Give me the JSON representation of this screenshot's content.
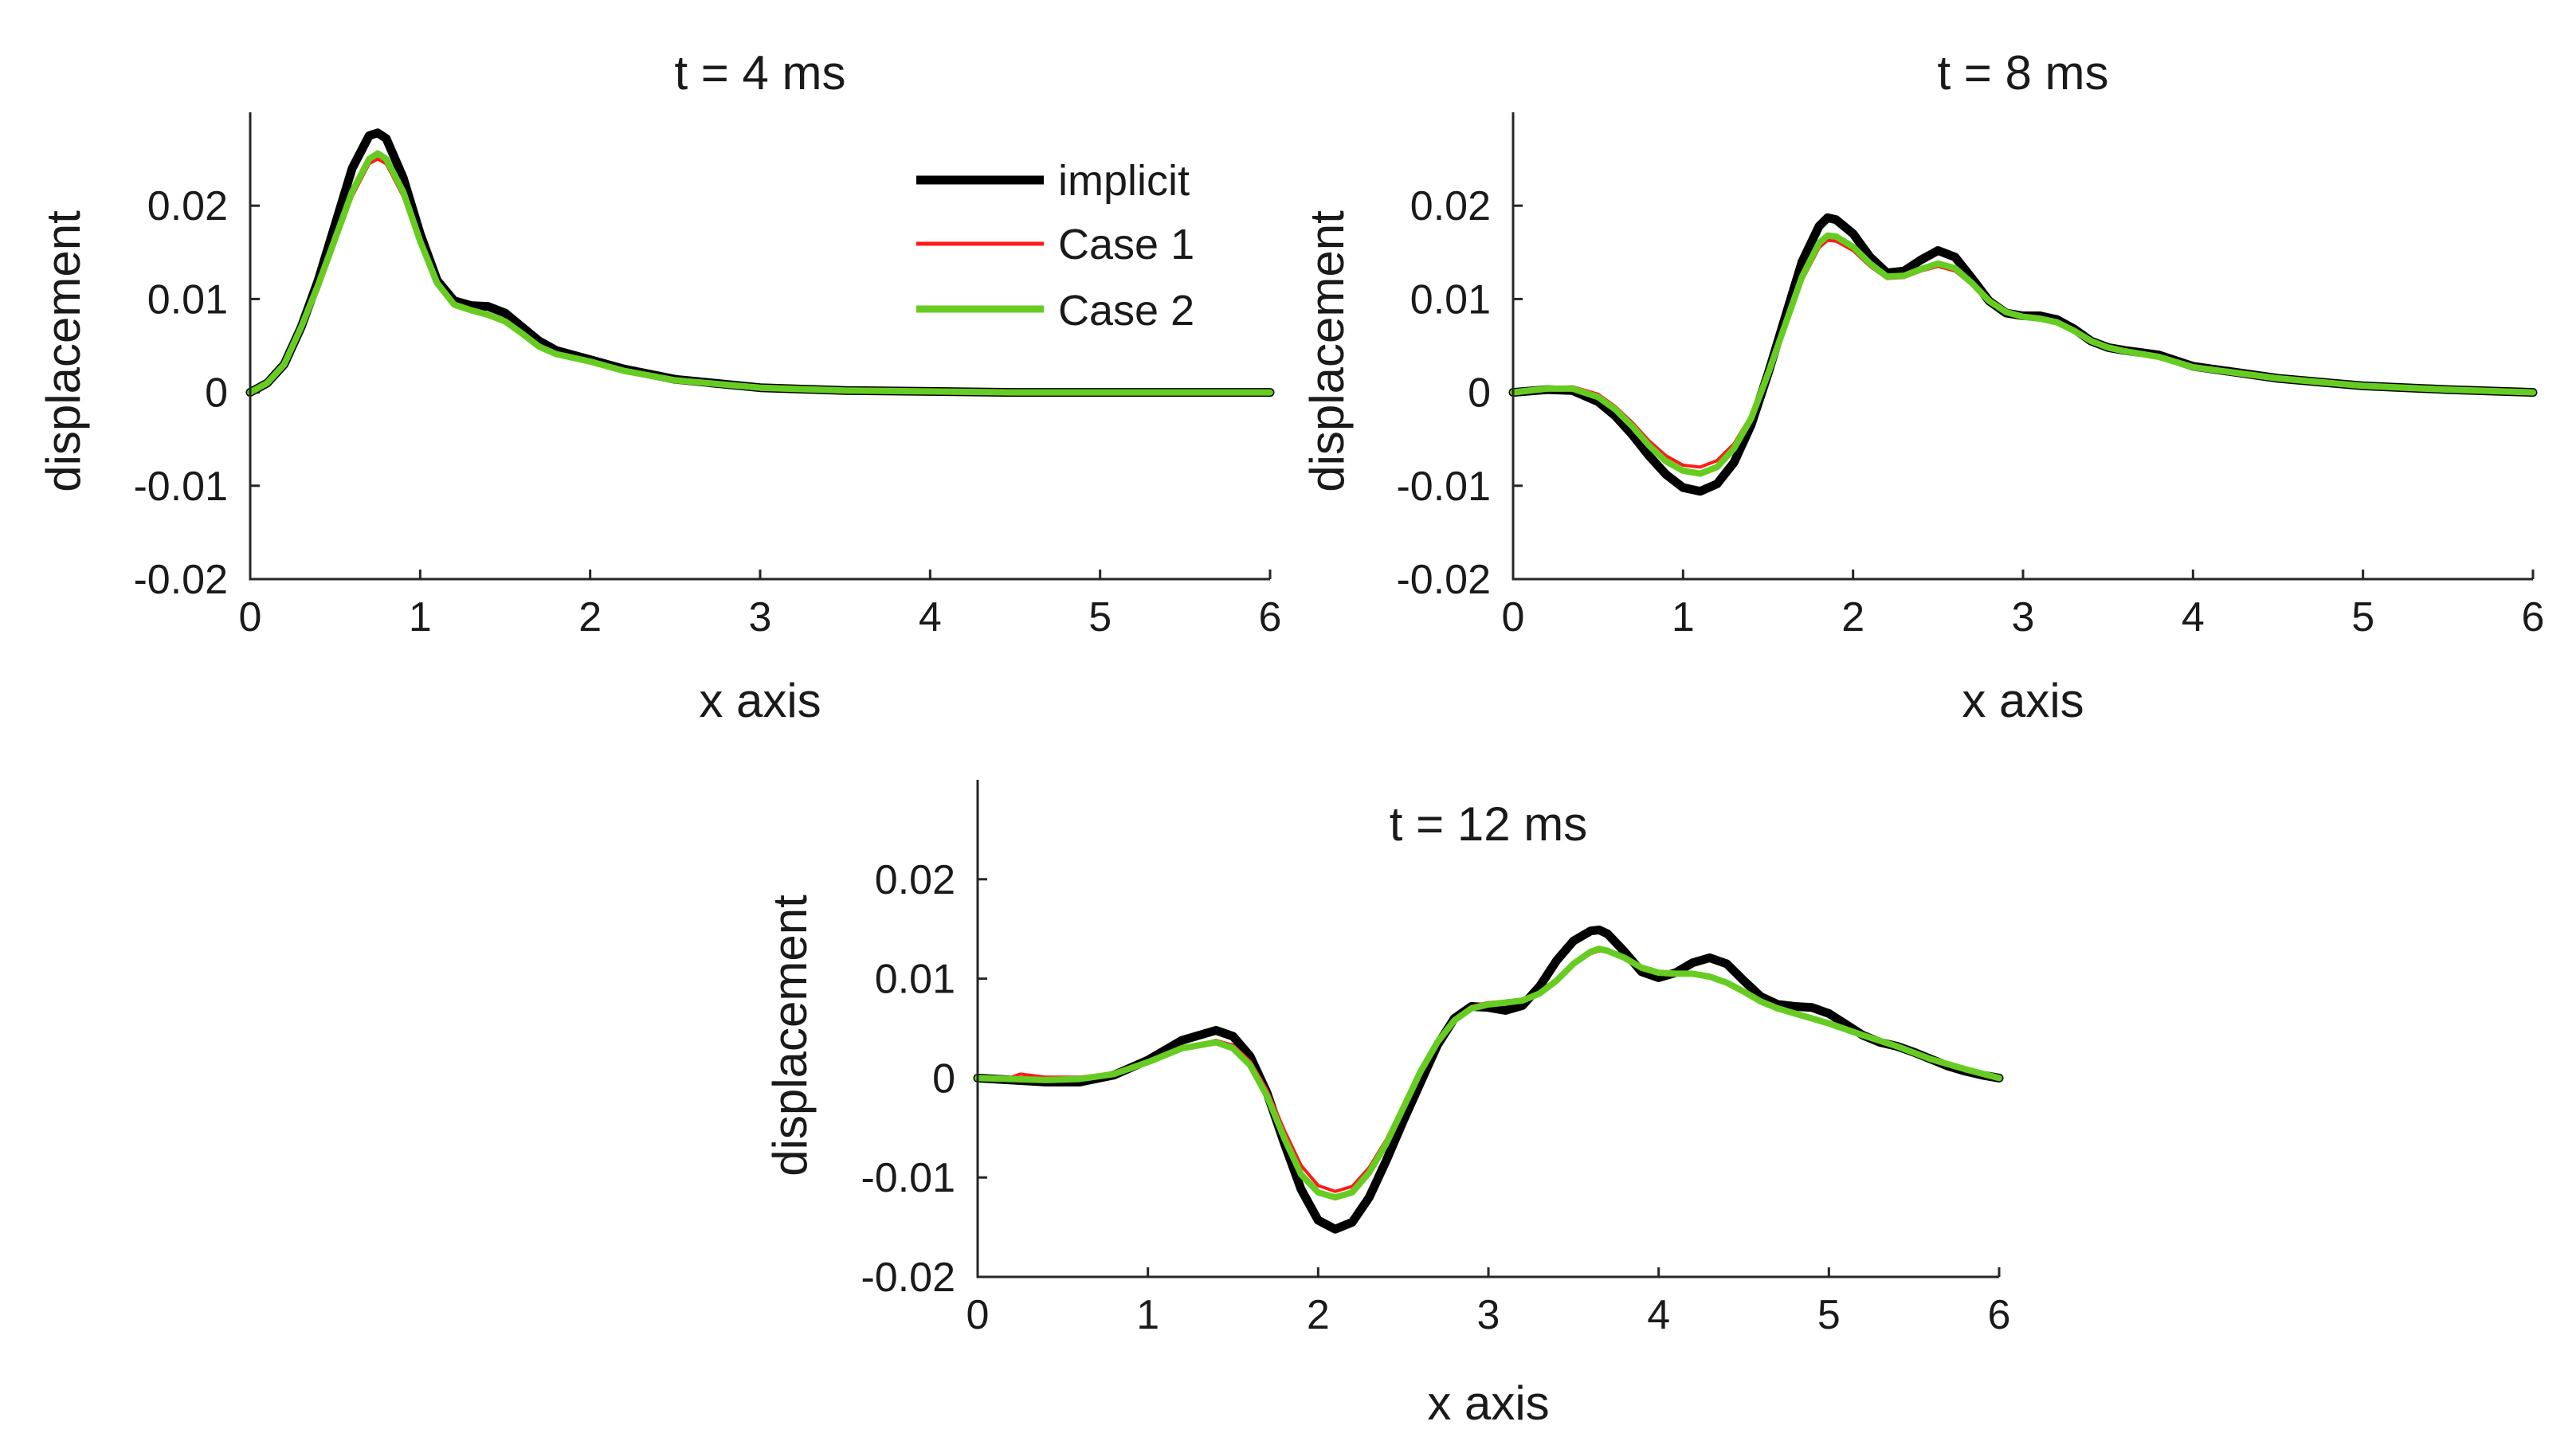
{
  "chart_data": [
    {
      "type": "line",
      "title": "t = 4 ms",
      "xlabel": "x axis",
      "ylabel": "displacement",
      "xlim": [
        0,
        6
      ],
      "ylim": [
        -0.02,
        0.03
      ],
      "xticks": [
        "0",
        "1",
        "2",
        "3",
        "4",
        "5",
        "6"
      ],
      "yticks": [
        "-0.02",
        "-0.01",
        "0",
        "0.01",
        "0.02"
      ],
      "legend": {
        "position": "top-right",
        "entries": [
          "implicit",
          "Case 1",
          "Case 2"
        ]
      },
      "series": [
        {
          "name": "implicit",
          "color": "#000000",
          "x": [
            0,
            0.1,
            0.2,
            0.3,
            0.4,
            0.5,
            0.6,
            0.7,
            0.75,
            0.8,
            0.9,
            1.0,
            1.1,
            1.2,
            1.3,
            1.4,
            1.5,
            1.6,
            1.7,
            1.8,
            2.0,
            2.2,
            2.5,
            3.0,
            3.5,
            4.0,
            4.5,
            5.0,
            6.0
          ],
          "y": [
            0,
            0.001,
            0.003,
            0.007,
            0.012,
            0.018,
            0.024,
            0.0275,
            0.0278,
            0.0272,
            0.023,
            0.017,
            0.012,
            0.0098,
            0.0093,
            0.0092,
            0.0085,
            0.007,
            0.0055,
            0.0045,
            0.0035,
            0.0025,
            0.0014,
            0.0005,
            0.0002,
            0.0001,
            0,
            0,
            0
          ]
        },
        {
          "name": "Case 1",
          "color": "#ff1a1a",
          "x": [
            0,
            0.1,
            0.2,
            0.3,
            0.4,
            0.5,
            0.6,
            0.7,
            0.75,
            0.8,
            0.9,
            1.0,
            1.1,
            1.2,
            1.3,
            1.4,
            1.5,
            1.6,
            1.7,
            1.8,
            2.0,
            2.2,
            2.5,
            3.0,
            3.5,
            4.0,
            4.5,
            5.0,
            6.0
          ],
          "y": [
            0,
            0.001,
            0.003,
            0.007,
            0.011,
            0.016,
            0.021,
            0.0245,
            0.025,
            0.0245,
            0.021,
            0.016,
            0.0115,
            0.0093,
            0.0087,
            0.0082,
            0.0075,
            0.0062,
            0.005,
            0.0042,
            0.0034,
            0.0024,
            0.0014,
            0.0006,
            0.0002,
            0.0001,
            0,
            0,
            0
          ]
        },
        {
          "name": "Case 2",
          "color": "#66cc22",
          "x": [
            0,
            0.1,
            0.2,
            0.3,
            0.4,
            0.5,
            0.6,
            0.7,
            0.75,
            0.8,
            0.9,
            1.0,
            1.1,
            1.2,
            1.3,
            1.4,
            1.5,
            1.6,
            1.7,
            1.8,
            2.0,
            2.2,
            2.5,
            3.0,
            3.5,
            4.0,
            4.5,
            5.0,
            6.0
          ],
          "y": [
            0,
            0.001,
            0.003,
            0.007,
            0.0115,
            0.0165,
            0.0215,
            0.025,
            0.0256,
            0.025,
            0.0215,
            0.0162,
            0.0117,
            0.0094,
            0.0088,
            0.0083,
            0.0076,
            0.0063,
            0.0049,
            0.0041,
            0.0033,
            0.0023,
            0.0013,
            0.0005,
            0.0002,
            0.0001,
            0,
            0,
            0
          ]
        }
      ]
    },
    {
      "type": "line",
      "title": "t = 8 ms",
      "xlabel": "x axis",
      "ylabel": "displacement",
      "xlim": [
        0,
        6
      ],
      "ylim": [
        -0.02,
        0.03
      ],
      "xticks": [
        "0",
        "1",
        "2",
        "3",
        "4",
        "5",
        "6"
      ],
      "yticks": [
        "-0.02",
        "-0.01",
        "0",
        "0.01",
        "0.02"
      ],
      "series": [
        {
          "name": "implicit",
          "color": "#000000",
          "x": [
            0,
            0.2,
            0.35,
            0.5,
            0.6,
            0.7,
            0.8,
            0.9,
            1.0,
            1.1,
            1.2,
            1.3,
            1.4,
            1.5,
            1.6,
            1.7,
            1.8,
            1.85,
            1.9,
            2.0,
            2.1,
            2.2,
            2.3,
            2.4,
            2.5,
            2.6,
            2.7,
            2.8,
            2.9,
            3.0,
            3.1,
            3.2,
            3.3,
            3.4,
            3.5,
            3.6,
            3.8,
            4.0,
            4.5,
            5.0,
            5.5,
            6.0
          ],
          "y": [
            0,
            0.0003,
            0.0002,
            -0.001,
            -0.0025,
            -0.0045,
            -0.0068,
            -0.0088,
            -0.0102,
            -0.0106,
            -0.0098,
            -0.0075,
            -0.0035,
            0.002,
            0.008,
            0.014,
            0.0178,
            0.0187,
            0.0185,
            0.017,
            0.0145,
            0.0128,
            0.013,
            0.0142,
            0.0152,
            0.0145,
            0.0122,
            0.0098,
            0.0085,
            0.0082,
            0.0082,
            0.0078,
            0.0068,
            0.0055,
            0.0048,
            0.0045,
            0.004,
            0.0028,
            0.0015,
            0.0007,
            0.0003,
            0
          ]
        },
        {
          "name": "Case 1",
          "color": "#ff1a1a",
          "x": [
            0,
            0.2,
            0.35,
            0.5,
            0.6,
            0.7,
            0.8,
            0.9,
            1.0,
            1.1,
            1.2,
            1.3,
            1.4,
            1.5,
            1.6,
            1.7,
            1.8,
            1.85,
            1.9,
            2.0,
            2.1,
            2.2,
            2.3,
            2.4,
            2.5,
            2.6,
            2.7,
            2.8,
            2.9,
            3.0,
            3.1,
            3.2,
            3.3,
            3.4,
            3.5,
            3.6,
            3.8,
            4.0,
            4.5,
            5.0,
            5.5,
            6.0
          ],
          "y": [
            0,
            0.0005,
            0.0006,
            -0.0002,
            -0.0015,
            -0.0032,
            -0.0052,
            -0.0068,
            -0.0078,
            -0.008,
            -0.0073,
            -0.0055,
            -0.0025,
            0.002,
            0.007,
            0.012,
            0.0155,
            0.0163,
            0.0162,
            0.0152,
            0.0135,
            0.0122,
            0.0123,
            0.013,
            0.0135,
            0.013,
            0.0115,
            0.0097,
            0.0086,
            0.0081,
            0.0078,
            0.0074,
            0.0066,
            0.0055,
            0.0048,
            0.0044,
            0.0038,
            0.0027,
            0.0015,
            0.0007,
            0.0003,
            0
          ]
        },
        {
          "name": "Case 2",
          "color": "#66cc22",
          "x": [
            0,
            0.2,
            0.35,
            0.5,
            0.6,
            0.7,
            0.8,
            0.9,
            1.0,
            1.1,
            1.2,
            1.3,
            1.4,
            1.5,
            1.6,
            1.7,
            1.8,
            1.85,
            1.9,
            2.0,
            2.1,
            2.2,
            2.3,
            2.4,
            2.5,
            2.6,
            2.7,
            2.8,
            2.9,
            3.0,
            3.1,
            3.2,
            3.3,
            3.4,
            3.5,
            3.6,
            3.8,
            4.0,
            4.5,
            5.0,
            5.5,
            6.0
          ],
          "y": [
            0,
            0.0004,
            0.0004,
            -0.0005,
            -0.0018,
            -0.0036,
            -0.0057,
            -0.0074,
            -0.0084,
            -0.0087,
            -0.008,
            -0.006,
            -0.0028,
            0.002,
            0.0072,
            0.0124,
            0.016,
            0.0168,
            0.0167,
            0.0156,
            0.0138,
            0.0124,
            0.0125,
            0.0132,
            0.0138,
            0.0133,
            0.0117,
            0.0098,
            0.0086,
            0.0081,
            0.0079,
            0.0075,
            0.0066,
            0.0055,
            0.0048,
            0.0044,
            0.0038,
            0.0027,
            0.0015,
            0.0007,
            0.0003,
            0
          ]
        }
      ]
    },
    {
      "type": "line",
      "title": "t = 12 ms",
      "xlabel": "x axis",
      "ylabel": "displacement",
      "xlim": [
        0,
        6
      ],
      "ylim": [
        -0.02,
        0.03
      ],
      "xticks": [
        "0",
        "1",
        "2",
        "3",
        "4",
        "5",
        "6"
      ],
      "yticks": [
        "-0.02",
        "-0.01",
        "0",
        "0.01",
        "0.02"
      ],
      "series": [
        {
          "name": "implicit",
          "color": "#000000",
          "x": [
            0,
            0.2,
            0.4,
            0.6,
            0.8,
            1.0,
            1.2,
            1.4,
            1.5,
            1.6,
            1.7,
            1.8,
            1.9,
            2.0,
            2.1,
            2.2,
            2.3,
            2.4,
            2.5,
            2.6,
            2.7,
            2.8,
            2.9,
            3.0,
            3.1,
            3.2,
            3.3,
            3.4,
            3.5,
            3.6,
            3.65,
            3.7,
            3.8,
            3.9,
            4.0,
            4.1,
            4.2,
            4.3,
            4.4,
            4.5,
            4.6,
            4.7,
            4.8,
            4.9,
            5.0,
            5.1,
            5.2,
            5.3,
            5.4,
            5.5,
            5.6,
            5.7,
            5.8,
            5.9,
            6.0
          ],
          "y": [
            0,
            -0.0002,
            -0.0004,
            -0.0004,
            0.0003,
            0.0018,
            0.0038,
            0.0048,
            0.0042,
            0.0022,
            -0.0015,
            -0.0065,
            -0.0112,
            -0.0143,
            -0.0152,
            -0.0145,
            -0.012,
            -0.0083,
            -0.0043,
            -0.0005,
            0.0033,
            0.006,
            0.0072,
            0.0071,
            0.0068,
            0.0073,
            0.0092,
            0.0118,
            0.0138,
            0.0148,
            0.0149,
            0.0145,
            0.0127,
            0.0107,
            0.0101,
            0.0106,
            0.0116,
            0.0121,
            0.0115,
            0.0098,
            0.0082,
            0.0074,
            0.0072,
            0.0071,
            0.0065,
            0.0054,
            0.0043,
            0.0036,
            0.0032,
            0.0026,
            0.0019,
            0.0012,
            0.0007,
            0.0003,
            0
          ]
        },
        {
          "name": "Case 1",
          "color": "#ff1a1a",
          "x": [
            0,
            0.2,
            0.25,
            0.4,
            0.6,
            0.8,
            1.0,
            1.2,
            1.4,
            1.5,
            1.6,
            1.7,
            1.8,
            1.9,
            2.0,
            2.1,
            2.2,
            2.3,
            2.4,
            2.5,
            2.6,
            2.7,
            2.8,
            2.9,
            3.0,
            3.1,
            3.2,
            3.3,
            3.4,
            3.5,
            3.6,
            3.65,
            3.7,
            3.8,
            3.9,
            4.0,
            4.1,
            4.2,
            4.3,
            4.4,
            4.5,
            4.6,
            4.7,
            4.8,
            4.9,
            5.0,
            5.2,
            5.4,
            5.6,
            5.8,
            6.0
          ],
          "y": [
            0,
            0.0001,
            0.0004,
            0.0001,
            0.0001,
            0.0005,
            0.0016,
            0.003,
            0.0038,
            0.0033,
            0.0017,
            -0.0012,
            -0.0052,
            -0.0088,
            -0.0108,
            -0.0114,
            -0.0109,
            -0.009,
            -0.0062,
            -0.0027,
            0.0008,
            0.0038,
            0.006,
            0.0072,
            0.0076,
            0.0077,
            0.0079,
            0.0085,
            0.0098,
            0.0115,
            0.0125,
            0.0128,
            0.0127,
            0.012,
            0.011,
            0.0105,
            0.0104,
            0.0104,
            0.0101,
            0.0095,
            0.0086,
            0.0076,
            0.0069,
            0.0064,
            0.006,
            0.0055,
            0.0043,
            0.0032,
            0.0019,
            0.0009,
            0
          ]
        },
        {
          "name": "Case 2",
          "color": "#66cc22",
          "x": [
            0,
            0.2,
            0.4,
            0.6,
            0.8,
            1.0,
            1.2,
            1.4,
            1.5,
            1.6,
            1.7,
            1.8,
            1.9,
            2.0,
            2.1,
            2.2,
            2.3,
            2.4,
            2.5,
            2.6,
            2.7,
            2.8,
            2.9,
            3.0,
            3.1,
            3.2,
            3.3,
            3.4,
            3.5,
            3.6,
            3.65,
            3.7,
            3.8,
            3.9,
            4.0,
            4.1,
            4.2,
            4.3,
            4.4,
            4.5,
            4.6,
            4.7,
            4.8,
            4.9,
            5.0,
            5.2,
            5.4,
            5.6,
            5.8,
            6.0
          ],
          "y": [
            0,
            -0.0001,
            -0.0002,
            -0.0001,
            0.0004,
            0.0016,
            0.003,
            0.0036,
            0.003,
            0.0013,
            -0.0018,
            -0.006,
            -0.0097,
            -0.0115,
            -0.012,
            -0.0115,
            -0.0095,
            -0.0066,
            -0.003,
            0.0006,
            0.0036,
            0.0058,
            0.007,
            0.0074,
            0.0076,
            0.0078,
            0.0085,
            0.0098,
            0.0115,
            0.0127,
            0.013,
            0.0128,
            0.0121,
            0.0111,
            0.0106,
            0.0105,
            0.0105,
            0.0102,
            0.0096,
            0.0087,
            0.0077,
            0.007,
            0.0065,
            0.006,
            0.0055,
            0.0043,
            0.0032,
            0.0019,
            0.0009,
            0
          ]
        }
      ]
    }
  ]
}
